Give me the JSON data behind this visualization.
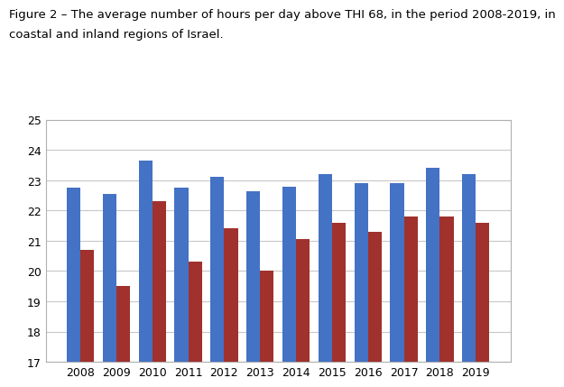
{
  "title_line1": "Figure 2 – The average number of hours per day above THI 68, in the period 2008-2019, in",
  "title_line2": "coastal and inland regions of Israel.",
  "years": [
    2008,
    2009,
    2010,
    2011,
    2012,
    2013,
    2014,
    2015,
    2016,
    2017,
    2018,
    2019
  ],
  "coastal_values": [
    22.75,
    22.55,
    23.65,
    22.75,
    23.1,
    22.65,
    22.8,
    23.2,
    22.9,
    22.9,
    23.4,
    23.2
  ],
  "inland_values": [
    20.7,
    19.5,
    22.3,
    20.3,
    21.4,
    20.0,
    21.05,
    21.6,
    21.3,
    21.8,
    21.8,
    21.6
  ],
  "coastal_color": "#4472C4",
  "inland_color": "#A0312D",
  "ylim": [
    17,
    25
  ],
  "yticks": [
    17,
    18,
    19,
    20,
    21,
    22,
    23,
    24,
    25
  ],
  "bar_width": 0.38,
  "background_color": "#ffffff",
  "plot_bg_color": "#ffffff",
  "grid_color": "#c8c8c8",
  "title_fontsize": 9.5,
  "tick_fontsize": 9.0,
  "border_color": "#b0b0b0"
}
